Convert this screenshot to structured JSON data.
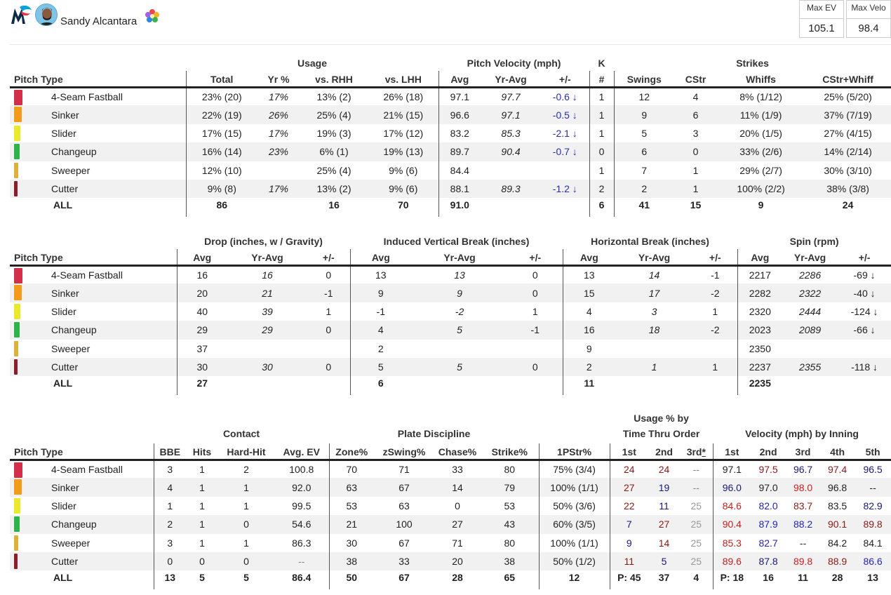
{
  "header": {
    "player_name": "Sandy Alcantara",
    "logo_icon": "marlins-logo-icon",
    "stat_boxes": [
      {
        "label": "Max EV",
        "value": "105.1"
      },
      {
        "label": "Max Velo",
        "value": "98.4"
      }
    ]
  },
  "pitch_colors": {
    "4-Seam Fastball": "#d12f4a",
    "Sinker": "#f39c1a",
    "Slider": "#eaea2a",
    "Changeup": "#2eb34a",
    "Sweeper": "#dcb23a",
    "Cutter": "#8c1d2a"
  },
  "table1": {
    "groups": {
      "usage": "Usage",
      "velocity": "Pitch Velocity (mph)",
      "k": "K",
      "strikes": "Strikes"
    },
    "columns": [
      "Pitch Type",
      "Total",
      "Yr %",
      "vs. RHH",
      "vs. LHH",
      "Avg",
      "Yr-Avg",
      "+/-",
      "#",
      "Swings",
      "CStr",
      "Whiffs",
      "CStr+Whiff"
    ],
    "rows": [
      {
        "pitch": "4-Seam Fastball",
        "total": "23% (20)",
        "yr": "17%",
        "rhh": "13% (2)",
        "lhh": "26% (18)",
        "avg": "97.1",
        "yravg": "97.7",
        "diff": "-0.6 ↓",
        "k": "1",
        "swings": "12",
        "cstr": "4",
        "whiffs": "8% (1/12)",
        "csw": "25% (5/20)"
      },
      {
        "pitch": "Sinker",
        "total": "22% (19)",
        "yr": "26%",
        "rhh": "25% (4)",
        "lhh": "21% (15)",
        "avg": "96.6",
        "yravg": "97.1",
        "diff": "-0.5 ↓",
        "k": "1",
        "swings": "9",
        "cstr": "6",
        "whiffs": "11% (1/9)",
        "csw": "37% (7/19)"
      },
      {
        "pitch": "Slider",
        "total": "17% (15)",
        "yr": "17%",
        "rhh": "19% (3)",
        "lhh": "17% (12)",
        "avg": "83.2",
        "yravg": "85.3",
        "diff": "-2.1 ↓",
        "k": "1",
        "swings": "5",
        "cstr": "3",
        "whiffs": "20% (1/5)",
        "csw": "27% (4/15)"
      },
      {
        "pitch": "Changeup",
        "total": "16% (14)",
        "yr": "23%",
        "rhh": "6% (1)",
        "lhh": "19% (13)",
        "avg": "89.7",
        "yravg": "90.4",
        "diff": "-0.7 ↓",
        "k": "0",
        "swings": "6",
        "cstr": "0",
        "whiffs": "33% (2/6)",
        "csw": "14% (2/14)"
      },
      {
        "pitch": "Sweeper",
        "total": "12% (10)",
        "yr": "",
        "rhh": "25% (4)",
        "lhh": "9% (6)",
        "avg": "84.4",
        "yravg": "",
        "diff": "",
        "k": "1",
        "swings": "7",
        "cstr": "1",
        "whiffs": "29% (2/7)",
        "csw": "30% (3/10)"
      },
      {
        "pitch": "Cutter",
        "total": "9% (8)",
        "yr": "17%",
        "rhh": "13% (2)",
        "lhh": "9% (6)",
        "avg": "88.1",
        "yravg": "89.3",
        "diff": "-1.2 ↓",
        "k": "2",
        "swings": "2",
        "cstr": "1",
        "whiffs": "100% (2/2)",
        "csw": "38% (3/8)"
      }
    ],
    "totals": {
      "pitch": "ALL",
      "total": "86",
      "yr": "",
      "rhh": "16",
      "lhh": "70",
      "avg": "91.0",
      "yravg": "",
      "diff": "",
      "k": "6",
      "swings": "41",
      "cstr": "15",
      "whiffs": "9",
      "csw": "24"
    }
  },
  "table2": {
    "groups": {
      "drop": "Drop (inches, w / Gravity)",
      "ivb": "Induced Vertical Break (inches)",
      "hb": "Horizontal Break (inches)",
      "spin": "Spin (rpm)"
    },
    "columns": [
      "Pitch Type",
      "Avg",
      "Yr-Avg",
      "+/-",
      "Avg",
      "Yr-Avg",
      "+/-",
      "Avg",
      "Yr-Avg",
      "+/-",
      "Avg",
      "Yr-Avg",
      "+/-"
    ],
    "rows": [
      {
        "pitch": "4-Seam Fastball",
        "d_avg": "16",
        "d_yr": "16",
        "d_diff": "0",
        "i_avg": "13",
        "i_yr": "13",
        "i_diff": "0",
        "h_avg": "13",
        "h_yr": "14",
        "h_diff": "-1",
        "s_avg": "2217",
        "s_yr": "2286",
        "s_diff": "-69 ↓"
      },
      {
        "pitch": "Sinker",
        "d_avg": "20",
        "d_yr": "21",
        "d_diff": "-1",
        "i_avg": "9",
        "i_yr": "9",
        "i_diff": "0",
        "h_avg": "15",
        "h_yr": "17",
        "h_diff": "-2",
        "s_avg": "2282",
        "s_yr": "2322",
        "s_diff": "-40 ↓"
      },
      {
        "pitch": "Slider",
        "d_avg": "40",
        "d_yr": "39",
        "d_diff": "1",
        "i_avg": "-1",
        "i_yr": "-2",
        "i_diff": "1",
        "h_avg": "4",
        "h_yr": "3",
        "h_diff": "1",
        "s_avg": "2320",
        "s_yr": "2444",
        "s_diff": "-124 ↓"
      },
      {
        "pitch": "Changeup",
        "d_avg": "29",
        "d_yr": "29",
        "d_diff": "0",
        "i_avg": "4",
        "i_yr": "5",
        "i_diff": "-1",
        "h_avg": "16",
        "h_yr": "18",
        "h_diff": "-2",
        "s_avg": "2023",
        "s_yr": "2089",
        "s_diff": "-66 ↓"
      },
      {
        "pitch": "Sweeper",
        "d_avg": "37",
        "d_yr": "",
        "d_diff": "",
        "i_avg": "2",
        "i_yr": "",
        "i_diff": "",
        "h_avg": "9",
        "h_yr": "",
        "h_diff": "",
        "s_avg": "2350",
        "s_yr": "",
        "s_diff": ""
      },
      {
        "pitch": "Cutter",
        "d_avg": "30",
        "d_yr": "30",
        "d_diff": "0",
        "i_avg": "5",
        "i_yr": "5",
        "i_diff": "0",
        "h_avg": "2",
        "h_yr": "1",
        "h_diff": "1",
        "s_avg": "2237",
        "s_yr": "2355",
        "s_diff": "-118 ↓"
      }
    ],
    "totals": {
      "pitch": "ALL",
      "d_avg": "27",
      "i_avg": "6",
      "h_avg": "11",
      "s_avg": "2235"
    }
  },
  "table3": {
    "groups": {
      "contact": "Contact",
      "discipline": "Plate Discipline",
      "tto_line1": "Usage % by",
      "tto_line2": "Time Thru Order",
      "inning": "Velocity (mph) by Inning"
    },
    "columns": [
      "Pitch Type",
      "BBE",
      "Hits",
      "Hard-Hit",
      "Avg. EV",
      "Zone%",
      "zSwing%",
      "Chase%",
      "Strike%",
      "1PStr%",
      "1st",
      "2nd",
      "3rd",
      "*",
      "1st",
      "2nd",
      "3rd",
      "4th",
      "5th"
    ],
    "rows": [
      {
        "pitch": "4-Seam Fastball",
        "bbe": "3",
        "hits": "1",
        "hh": "2",
        "ev": "100.8",
        "zone": "70",
        "zsw": "71",
        "chase": "33",
        "strike": "80",
        "fps": "75% (3/4)",
        "t1": "24",
        "t2": "24",
        "t3": "--",
        "i1": "97.1",
        "i2": "97.5",
        "i3": "96.7",
        "i4": "97.4",
        "i5": "96.5"
      },
      {
        "pitch": "Sinker",
        "bbe": "4",
        "hits": "1",
        "hh": "1",
        "ev": "92.0",
        "zone": "63",
        "zsw": "67",
        "chase": "14",
        "strike": "79",
        "fps": "100% (1/1)",
        "t1": "27",
        "t2": "19",
        "t3": "--",
        "i1": "96.0",
        "i2": "97.0",
        "i3": "98.0",
        "i4": "96.8",
        "i5": "--"
      },
      {
        "pitch": "Slider",
        "bbe": "1",
        "hits": "1",
        "hh": "1",
        "ev": "99.5",
        "zone": "53",
        "zsw": "63",
        "chase": "0",
        "strike": "53",
        "fps": "50% (3/6)",
        "t1": "22",
        "t2": "11",
        "t3": "25",
        "i1": "84.6",
        "i2": "82.0",
        "i3": "83.7",
        "i4": "83.5",
        "i5": "82.9"
      },
      {
        "pitch": "Changeup",
        "bbe": "2",
        "hits": "1",
        "hh": "0",
        "ev": "54.6",
        "zone": "21",
        "zsw": "100",
        "chase": "27",
        "strike": "43",
        "fps": "60% (3/5)",
        "t1": "7",
        "t2": "27",
        "t3": "25",
        "i1": "90.4",
        "i2": "87.9",
        "i3": "88.2",
        "i4": "90.1",
        "i5": "89.8"
      },
      {
        "pitch": "Sweeper",
        "bbe": "3",
        "hits": "1",
        "hh": "1",
        "ev": "86.3",
        "zone": "30",
        "zsw": "67",
        "chase": "71",
        "strike": "80",
        "fps": "100% (1/1)",
        "t1": "9",
        "t2": "14",
        "t3": "25",
        "i1": "85.3",
        "i2": "82.7",
        "i3": "--",
        "i4": "84.2",
        "i5": "84.1"
      },
      {
        "pitch": "Cutter",
        "bbe": "0",
        "hits": "0",
        "hh": "0",
        "ev": "--",
        "zone": "38",
        "zsw": "33",
        "chase": "20",
        "strike": "38",
        "fps": "50% (1/2)",
        "t1": "11",
        "t2": "5",
        "t3": "25",
        "i1": "89.6",
        "i2": "87.8",
        "i3": "89.8",
        "i4": "88.9",
        "i5": "86.6"
      }
    ],
    "totals": {
      "pitch": "ALL",
      "bbe": "13",
      "hits": "5",
      "hh": "5",
      "ev": "86.4",
      "zone": "50",
      "zsw": "67",
      "chase": "28",
      "strike": "65",
      "fps": "12",
      "t1": "P: 45",
      "t2": "37",
      "t3": "4",
      "i1": "P: 18",
      "i2": "16",
      "i3": "11",
      "i4": "28",
      "i5": "13"
    }
  }
}
